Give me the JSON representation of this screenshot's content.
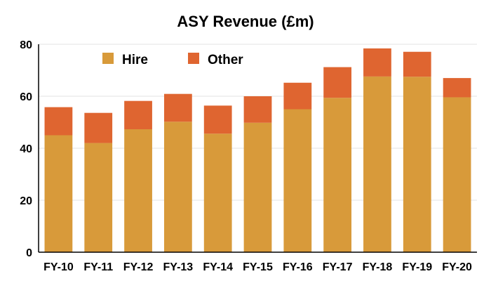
{
  "chart_data": {
    "type": "bar",
    "stacked": true,
    "title": "ASY Revenue (£m)",
    "xlabel": "",
    "ylabel": "",
    "categories": [
      "FY-10",
      "FY-11",
      "FY-12",
      "FY-13",
      "FY-14",
      "FY-15",
      "FY-16",
      "FY-17",
      "FY-18",
      "FY-19",
      "FY-20"
    ],
    "series": [
      {
        "name": "Hire",
        "color": "#D89A3A",
        "values": [
          45.0,
          42.0,
          47.3,
          50.2,
          45.6,
          49.8,
          55.0,
          59.4,
          67.6,
          67.5,
          59.6
        ]
      },
      {
        "name": "Other",
        "color": "#DF6530",
        "values": [
          10.8,
          11.6,
          10.9,
          10.7,
          10.8,
          10.2,
          10.2,
          11.8,
          10.8,
          9.6,
          7.4
        ]
      }
    ],
    "ylim": [
      0,
      80
    ],
    "yticks": [
      0,
      20,
      40,
      60,
      80
    ],
    "grid": true,
    "legend_position": "top-left"
  }
}
